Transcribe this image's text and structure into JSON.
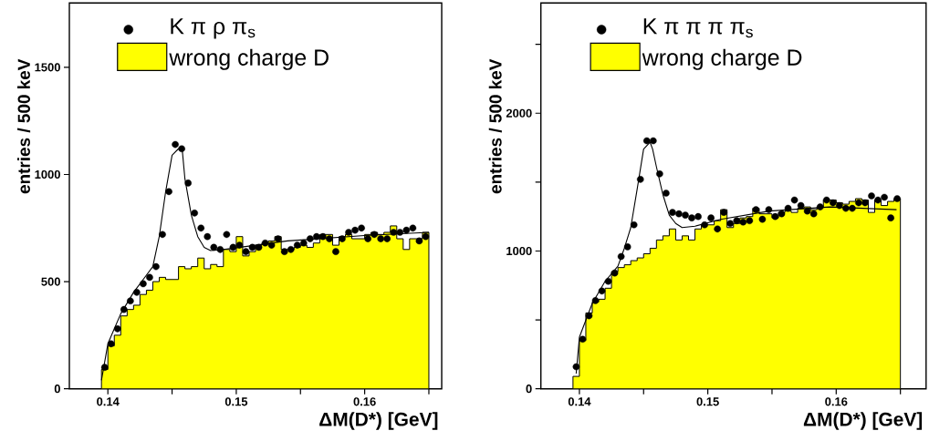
{
  "chart_data": [
    {
      "type": "histogram",
      "xlabel": "ΔM(D*) [GeV]",
      "ylabel": "entries / 500 keV",
      "xlim": [
        0.137,
        0.166
      ],
      "ylim": [
        0,
        1800
      ],
      "xticks": [
        0.14,
        {
          "value": 0.145,
          "label": null
        },
        0.15,
        {
          "value": 0.155,
          "label": null
        },
        0.16,
        {
          "value": 0.165,
          "label": null
        }
      ],
      "yticks": [
        0,
        500,
        1000,
        1500
      ],
      "legend": "top",
      "series": [
        {
          "name": "K π ρ π$_{s}$",
          "type": "scatter",
          "color": "#000000",
          "marker": "circle",
          "x": [
            0.13975,
            0.14025,
            0.14075,
            0.14125,
            0.14175,
            0.14225,
            0.14275,
            0.14325,
            0.14375,
            0.14425,
            0.14475,
            0.14525,
            0.14575,
            0.14625,
            0.14675,
            0.14725,
            0.14775,
            0.14825,
            0.14875,
            0.14925,
            0.14975,
            0.15025,
            0.15075,
            0.15125,
            0.15175,
            0.15225,
            0.15275,
            0.15325,
            0.15375,
            0.15425,
            0.15475,
            0.15525,
            0.15575,
            0.15625,
            0.15675,
            0.15725,
            0.15775,
            0.15825,
            0.15875,
            0.15925,
            0.15975,
            0.16025,
            0.16075,
            0.16125,
            0.16175,
            0.16225,
            0.16275,
            0.16325,
            0.16375,
            0.16425,
            0.16475
          ],
          "values": [
            100,
            210,
            280,
            370,
            410,
            450,
            490,
            520,
            570,
            720,
            920,
            1140,
            1120,
            960,
            820,
            750,
            710,
            660,
            650,
            720,
            660,
            670,
            640,
            660,
            660,
            680,
            670,
            700,
            640,
            650,
            670,
            680,
            700,
            710,
            710,
            700,
            640,
            700,
            730,
            740,
            750,
            700,
            720,
            700,
            700,
            730,
            730,
            740,
            750,
            690,
            710
          ]
        },
        {
          "name": "wrong charge D",
          "type": "histogram",
          "color": "#ffff00",
          "bins": [
            0.1395,
            0.14,
            0.1405,
            0.141,
            0.1415,
            0.142,
            0.1425,
            0.143,
            0.1435,
            0.144,
            0.1445,
            0.145,
            0.1455,
            0.146,
            0.1465,
            0.147,
            0.1475,
            0.148,
            0.1485,
            0.149,
            0.1495,
            0.15,
            0.1505,
            0.151,
            0.1515,
            0.152,
            0.1525,
            0.153,
            0.1535,
            0.154,
            0.1545,
            0.155,
            0.1555,
            0.156,
            0.1565,
            0.157,
            0.1575,
            0.158,
            0.1585,
            0.159,
            0.1595,
            0.16,
            0.1605,
            0.161,
            0.1615,
            0.162,
            0.1625,
            0.163,
            0.1635,
            0.164,
            0.1645,
            0.165
          ],
          "values": [
            90,
            200,
            250,
            340,
            370,
            390,
            440,
            460,
            500,
            520,
            510,
            510,
            570,
            560,
            570,
            610,
            560,
            580,
            570,
            650,
            640,
            710,
            620,
            640,
            670,
            680,
            690,
            710,
            650,
            650,
            660,
            670,
            660,
            680,
            720,
            720,
            670,
            710,
            720,
            700,
            700,
            720,
            730,
            720,
            730,
            760,
            700,
            650,
            700,
            700,
            730
          ]
        },
        {
          "type": "line",
          "color": "#000000",
          "x": [
            0.1395,
            0.14,
            0.141,
            0.142,
            0.143,
            0.1435,
            0.144,
            0.1445,
            0.145,
            0.1455,
            0.1458,
            0.146,
            0.1465,
            0.147,
            0.1475,
            0.148,
            0.149,
            0.154,
            0.16,
            0.165
          ],
          "values": [
            40,
            210,
            350,
            450,
            530,
            570,
            710,
            920,
            1090,
            1120,
            1110,
            980,
            810,
            710,
            660,
            645,
            650,
            690,
            715,
            730
          ]
        }
      ]
    },
    {
      "type": "histogram",
      "xlabel": "ΔM(D*) [GeV]",
      "ylabel": "entries / 500 keV",
      "xlim": [
        0.137,
        0.167
      ],
      "ylim": [
        0,
        2800
      ],
      "xticks": [
        0.14,
        {
          "value": 0.145,
          "label": null
        },
        0.15,
        {
          "value": 0.155,
          "label": null
        },
        0.16,
        {
          "value": 0.165,
          "label": null
        }
      ],
      "yticks": [
        0,
        {
          "value": 500,
          "label": null
        },
        1000,
        {
          "value": 1500,
          "label": null
        },
        2000,
        {
          "value": 2500,
          "label": null
        }
      ],
      "legend": "top",
      "series": [
        {
          "name": "K π π π π$_{s}$",
          "type": "scatter",
          "color": "#000000",
          "marker": "circle",
          "x": [
            0.13975,
            0.14025,
            0.14075,
            0.14125,
            0.14175,
            0.14225,
            0.14275,
            0.14325,
            0.14375,
            0.14425,
            0.14475,
            0.14525,
            0.14575,
            0.14625,
            0.14675,
            0.14725,
            0.14775,
            0.14825,
            0.14875,
            0.14925,
            0.14975,
            0.15025,
            0.15075,
            0.15125,
            0.15175,
            0.15225,
            0.15275,
            0.15325,
            0.15375,
            0.15425,
            0.15475,
            0.15525,
            0.15575,
            0.15625,
            0.15675,
            0.15725,
            0.15775,
            0.15825,
            0.15875,
            0.15925,
            0.15975,
            0.16025,
            0.16075,
            0.16125,
            0.16175,
            0.16225,
            0.16275,
            0.16325,
            0.16375,
            0.16425,
            0.16475
          ],
          "values": [
            160,
            360,
            530,
            640,
            710,
            780,
            840,
            960,
            1030,
            1190,
            1520,
            1800,
            1800,
            1560,
            1420,
            1280,
            1270,
            1260,
            1240,
            1250,
            1190,
            1240,
            1160,
            1280,
            1200,
            1220,
            1210,
            1220,
            1300,
            1230,
            1300,
            1250,
            1270,
            1310,
            1370,
            1330,
            1290,
            1270,
            1320,
            1370,
            1350,
            1330,
            1310,
            1310,
            1350,
            1350,
            1400,
            1370,
            1390,
            1240,
            1380
          ]
        },
        {
          "name": "wrong charge D",
          "type": "histogram",
          "color": "#ffff00",
          "bins": [
            0.1395,
            0.14,
            0.1405,
            0.141,
            0.1415,
            0.142,
            0.1425,
            0.143,
            0.1435,
            0.144,
            0.1445,
            0.145,
            0.1455,
            0.146,
            0.1465,
            0.147,
            0.1475,
            0.148,
            0.1485,
            0.149,
            0.1495,
            0.15,
            0.1505,
            0.151,
            0.1515,
            0.152,
            0.1525,
            0.153,
            0.1535,
            0.154,
            0.1545,
            0.155,
            0.1555,
            0.156,
            0.1565,
            0.157,
            0.1575,
            0.158,
            0.1585,
            0.159,
            0.1595,
            0.16,
            0.1605,
            0.161,
            0.1615,
            0.162,
            0.1625,
            0.163,
            0.1635,
            0.164,
            0.1645,
            0.165
          ],
          "values": [
            90,
            350,
            550,
            630,
            650,
            730,
            850,
            880,
            900,
            930,
            950,
            980,
            1020,
            1080,
            1110,
            1160,
            1080,
            1110,
            1080,
            1160,
            1190,
            1190,
            1220,
            1300,
            1170,
            1200,
            1240,
            1250,
            1310,
            1270,
            1270,
            1240,
            1280,
            1290,
            1280,
            1310,
            1320,
            1300,
            1320,
            1370,
            1370,
            1350,
            1340,
            1360,
            1380,
            1370,
            1280,
            1370,
            1330,
            1360,
            1380
          ]
        },
        {
          "type": "line",
          "color": "#000000",
          "x": [
            0.13975,
            0.14,
            0.141,
            0.142,
            0.143,
            0.1435,
            0.144,
            0.1445,
            0.145,
            0.1455,
            0.1457,
            0.146,
            0.1465,
            0.147,
            0.1475,
            0.148,
            0.149,
            0.151,
            0.1548,
            0.1595,
            0.1647
          ],
          "values": [
            110,
            375,
            620,
            780,
            890,
            1020,
            1170,
            1450,
            1740,
            1790,
            1740,
            1610,
            1410,
            1260,
            1200,
            1170,
            1180,
            1230,
            1290,
            1320,
            1300
          ]
        }
      ]
    }
  ]
}
